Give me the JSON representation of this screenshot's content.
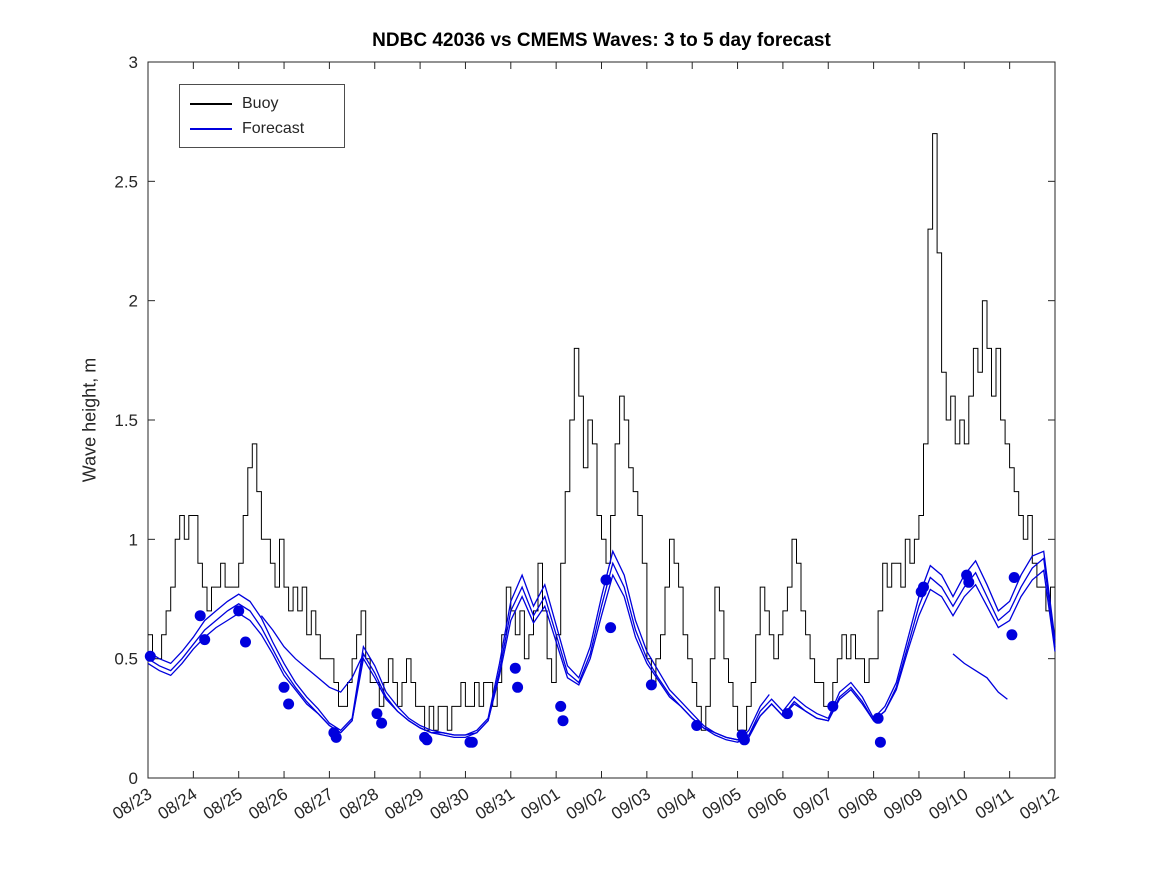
{
  "figure": {
    "title": "NDBC 42036 vs CMEMS Waves: 3 to 5 day forecast",
    "ylabel": "Wave height, m",
    "legend": [
      {
        "label": "Buoy",
        "color": "#000000"
      },
      {
        "label": "Forecast",
        "color": "#0000dd"
      }
    ]
  },
  "chart_data": {
    "type": "line",
    "title": "NDBC 42036 vs CMEMS Waves: 3 to 5 day forecast",
    "xlabel": "",
    "ylabel": "Wave height, m",
    "grid": false,
    "legend_position": "top-left",
    "legend": [
      "Buoy",
      "Forecast"
    ],
    "xlim": [
      0,
      20
    ],
    "ylim": [
      0,
      3
    ],
    "yticks": [
      0,
      0.5,
      1,
      1.5,
      2,
      2.5,
      3
    ],
    "ytick_labels": [
      "0",
      "0.5",
      "1",
      "1.5",
      "2",
      "2.5",
      "3"
    ],
    "xticks": [
      0,
      1,
      2,
      3,
      4,
      5,
      6,
      7,
      8,
      9,
      10,
      11,
      12,
      13,
      14,
      15,
      16,
      17,
      18,
      19,
      20
    ],
    "xtick_labels": [
      "08/23",
      "08/24",
      "08/25",
      "08/26",
      "08/27",
      "08/28",
      "08/29",
      "08/30",
      "08/31",
      "09/01",
      "09/02",
      "09/03",
      "09/04",
      "09/05",
      "09/06",
      "09/07",
      "09/08",
      "09/09",
      "09/10",
      "09/11",
      "09/12"
    ],
    "x_unit": "days since 08/23",
    "series": [
      {
        "name": "Buoy",
        "style": "step",
        "color": "#000000",
        "x_start": 0,
        "x_step": 0.1,
        "y": [
          0.6,
          0.5,
          0.5,
          0.6,
          0.7,
          0.8,
          1.0,
          1.1,
          1.0,
          1.1,
          1.1,
          0.9,
          0.8,
          0.7,
          0.8,
          0.8,
          0.9,
          0.8,
          0.8,
          0.8,
          0.9,
          1.1,
          1.3,
          1.4,
          1.2,
          1.0,
          1.0,
          0.9,
          0.8,
          1.0,
          0.8,
          0.7,
          0.8,
          0.7,
          0.8,
          0.6,
          0.7,
          0.6,
          0.5,
          0.5,
          0.5,
          0.4,
          0.3,
          0.3,
          0.4,
          0.5,
          0.6,
          0.7,
          0.5,
          0.4,
          0.4,
          0.3,
          0.4,
          0.5,
          0.4,
          0.3,
          0.4,
          0.5,
          0.4,
          0.3,
          0.3,
          0.2,
          0.3,
          0.2,
          0.3,
          0.3,
          0.2,
          0.3,
          0.3,
          0.4,
          0.3,
          0.3,
          0.4,
          0.3,
          0.4,
          0.4,
          0.3,
          0.4,
          0.6,
          0.8,
          0.7,
          0.6,
          0.7,
          0.5,
          0.6,
          0.7,
          0.9,
          0.7,
          0.5,
          0.4,
          0.6,
          0.9,
          1.2,
          1.5,
          1.8,
          1.6,
          1.3,
          1.5,
          1.4,
          1.1,
          1.0,
          0.9,
          1.1,
          1.4,
          1.6,
          1.5,
          1.3,
          1.2,
          1.1,
          0.9,
          0.5,
          0.4,
          0.5,
          0.6,
          0.8,
          1.0,
          0.9,
          0.8,
          0.6,
          0.5,
          0.4,
          0.3,
          0.2,
          0.3,
          0.5,
          0.8,
          0.7,
          0.5,
          0.4,
          0.3,
          0.2,
          0.2,
          0.3,
          0.4,
          0.6,
          0.8,
          0.7,
          0.6,
          0.5,
          0.6,
          0.7,
          0.8,
          1.0,
          0.9,
          0.7,
          0.6,
          0.5,
          0.4,
          0.4,
          0.3,
          0.3,
          0.4,
          0.5,
          0.6,
          0.5,
          0.6,
          0.5,
          0.5,
          0.4,
          0.5,
          0.5,
          0.7,
          0.9,
          0.8,
          0.9,
          0.9,
          0.8,
          1.0,
          0.9,
          1.0,
          1.1,
          1.4,
          2.3,
          2.7,
          2.2,
          1.7,
          1.5,
          1.6,
          1.4,
          1.5,
          1.4,
          1.6,
          1.8,
          1.7,
          2.0,
          1.8,
          1.6,
          1.8,
          1.5,
          1.4,
          1.3,
          1.2,
          1.1,
          1.0,
          1.1,
          0.9,
          0.8,
          0.8,
          0.7,
          0.8,
          0.8
        ]
      },
      {
        "name": "Forecast",
        "style": "line-with-markers",
        "color": "#0000dd",
        "segments": [
          {
            "x_start": 0,
            "x_step": 0.25,
            "y": [
              0.5,
              0.47,
              0.45,
              0.5,
              0.56,
              0.62,
              0.66,
              0.7,
              0.73,
              0.7,
              0.63,
              0.54,
              0.45,
              0.38,
              0.32,
              0.27,
              0.22,
              0.19,
              0.24,
              0.52,
              0.44,
              0.34,
              0.28,
              0.24,
              0.21,
              0.19,
              0.18,
              0.17,
              0.17,
              0.19,
              0.24,
              0.45,
              0.7,
              0.8,
              0.68,
              0.76,
              0.6,
              0.44,
              0.4,
              0.52,
              0.72,
              0.9,
              0.8,
              0.62,
              0.5,
              0.42,
              0.35,
              0.3,
              0.25,
              0.21,
              0.18,
              0.16,
              0.15,
              0.17,
              0.26,
              0.31,
              0.26,
              0.32,
              0.28,
              0.25,
              0.24,
              0.34,
              0.38,
              0.32,
              0.24,
              0.28,
              0.38,
              0.55,
              0.72,
              0.84,
              0.8,
              0.72,
              0.8,
              0.86,
              0.76,
              0.66,
              0.7,
              0.8,
              0.88,
              0.92,
              0.55
            ]
          },
          {
            "x_start": 0,
            "x_step": 0.25,
            "y": [
              0.48,
              0.45,
              0.43,
              0.48,
              0.54,
              0.59,
              0.63,
              0.66,
              0.69,
              0.66,
              0.6,
              0.52,
              0.43,
              0.37,
              0.31,
              0.27,
              0.22,
              0.19,
              0.24,
              0.5,
              0.42,
              0.33,
              0.28,
              0.24,
              0.21,
              0.19,
              0.19,
              0.18,
              0.18,
              0.19,
              0.24,
              0.43,
              0.66,
              0.76,
              0.65,
              0.72,
              0.57,
              0.42,
              0.39,
              0.5,
              0.68,
              0.85,
              0.76,
              0.59,
              0.48,
              0.41,
              0.34,
              0.3,
              0.25,
              0.21,
              0.19,
              0.17,
              0.16,
              0.18,
              0.26,
              0.31,
              0.26,
              0.31,
              0.28,
              0.25,
              0.24,
              0.33,
              0.37,
              0.31,
              0.24,
              0.28,
              0.37,
              0.53,
              0.68,
              0.79,
              0.76,
              0.68,
              0.76,
              0.81,
              0.72,
              0.63,
              0.66,
              0.76,
              0.83,
              0.87,
              0.53
            ]
          },
          {
            "x_start": 0,
            "x_step": 0.25,
            "y": [
              0.53,
              0.5,
              0.48,
              0.53,
              0.59,
              0.66,
              0.7,
              0.74,
              0.77,
              0.74,
              0.67,
              0.57,
              0.48,
              0.4,
              0.34,
              0.29,
              0.23,
              0.2,
              0.25,
              0.55,
              0.47,
              0.36,
              0.3,
              0.25,
              0.22,
              0.2,
              0.19,
              0.18,
              0.18,
              0.2,
              0.25,
              0.48,
              0.74,
              0.85,
              0.72,
              0.81,
              0.64,
              0.47,
              0.42,
              0.55,
              0.76,
              0.95,
              0.85,
              0.66,
              0.53,
              0.45,
              0.37,
              0.32,
              0.27,
              0.22,
              0.19,
              0.17,
              0.16,
              0.18,
              0.28,
              0.33,
              0.28,
              0.34,
              0.3,
              0.27,
              0.25,
              0.36,
              0.4,
              0.34,
              0.25,
              0.3,
              0.4,
              0.58,
              0.76,
              0.89,
              0.85,
              0.76,
              0.85,
              0.91,
              0.81,
              0.7,
              0.74,
              0.85,
              0.93,
              0.95,
              0.58
            ]
          },
          {
            "x": [
              2.5,
              2.75,
              3.0,
              3.25,
              3.5,
              3.75,
              4.0,
              4.25,
              4.5,
              4.7
            ],
            "y": [
              0.68,
              0.62,
              0.55,
              0.5,
              0.46,
              0.42,
              0.38,
              0.36,
              0.42,
              0.5
            ]
          },
          {
            "x": [
              13.0,
              13.25,
              13.5,
              13.7
            ],
            "y": [
              0.15,
              0.2,
              0.3,
              0.35
            ]
          },
          {
            "x": [
              17.75,
              18.0,
              18.25,
              18.5,
              18.75,
              18.95
            ],
            "y": [
              0.52,
              0.48,
              0.45,
              0.42,
              0.36,
              0.33
            ]
          }
        ],
        "markers": {
          "x": [
            0.05,
            1.15,
            1.25,
            2.0,
            2.15,
            3.0,
            3.1,
            4.1,
            4.15,
            5.05,
            5.15,
            6.1,
            6.15,
            7.1,
            7.15,
            8.1,
            8.15,
            9.1,
            9.15,
            10.1,
            10.2,
            11.1,
            12.1,
            13.1,
            13.15,
            14.1,
            15.1,
            16.1,
            16.15,
            17.05,
            17.1,
            18.05,
            18.1,
            19.05,
            19.1
          ],
          "y": [
            0.51,
            0.68,
            0.58,
            0.7,
            0.57,
            0.38,
            0.31,
            0.19,
            0.17,
            0.27,
            0.23,
            0.17,
            0.16,
            0.15,
            0.15,
            0.46,
            0.38,
            0.3,
            0.24,
            0.83,
            0.63,
            0.39,
            0.22,
            0.18,
            0.16,
            0.27,
            0.3,
            0.25,
            0.15,
            0.78,
            0.8,
            0.85,
            0.82,
            0.6,
            0.84
          ]
        }
      }
    ]
  }
}
